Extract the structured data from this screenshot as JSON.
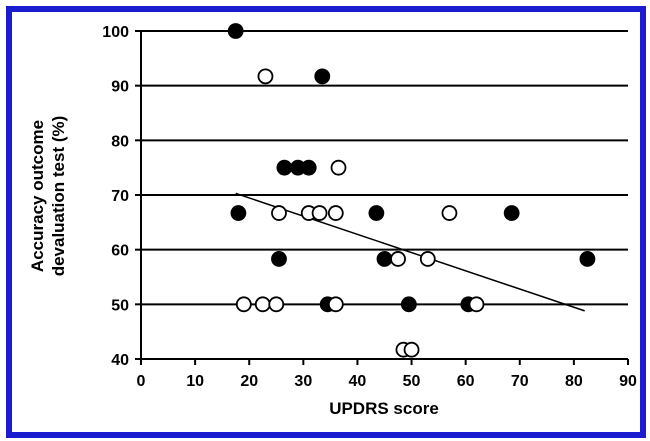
{
  "chart_data": {
    "type": "scatter",
    "xlabel": "UPDRS score",
    "ylabel_lines": [
      "Accuracy outcome",
      "devaluation test (%)"
    ],
    "xlim": [
      0,
      90
    ],
    "ylim": [
      40,
      100
    ],
    "x_ticks": [
      0,
      10,
      20,
      30,
      40,
      50,
      60,
      70,
      80,
      90
    ],
    "y_ticks": [
      40,
      50,
      60,
      70,
      80,
      90,
      100
    ],
    "horizontal_grid": true,
    "series": [
      {
        "marker": "filled-circle",
        "color": "#000000",
        "points": [
          [
            17.5,
            100
          ],
          [
            33.5,
            91.7
          ],
          [
            26.5,
            75
          ],
          [
            29,
            75
          ],
          [
            31,
            75
          ],
          [
            18,
            66.7
          ],
          [
            43.5,
            66.7
          ],
          [
            68.5,
            66.7
          ],
          [
            25.5,
            58.3
          ],
          [
            45,
            58.3
          ],
          [
            82.5,
            58.3
          ],
          [
            34.5,
            50
          ],
          [
            49.5,
            50
          ],
          [
            60.5,
            50
          ]
        ]
      },
      {
        "marker": "open-circle",
        "color": "#000000",
        "points": [
          [
            23,
            91.7
          ],
          [
            36.5,
            75
          ],
          [
            25.5,
            66.7
          ],
          [
            31,
            66.7
          ],
          [
            33,
            66.7
          ],
          [
            36,
            66.7
          ],
          [
            57,
            66.7
          ],
          [
            47.5,
            58.3
          ],
          [
            53,
            58.3
          ],
          [
            19,
            50
          ],
          [
            22.5,
            50
          ],
          [
            25,
            50
          ],
          [
            36,
            50
          ],
          [
            62,
            50
          ],
          [
            48.5,
            41.7
          ],
          [
            50,
            41.7
          ]
        ]
      }
    ],
    "trendline": {
      "x": [
        17.5,
        82
      ],
      "y": [
        70.3,
        48.8
      ]
    }
  }
}
